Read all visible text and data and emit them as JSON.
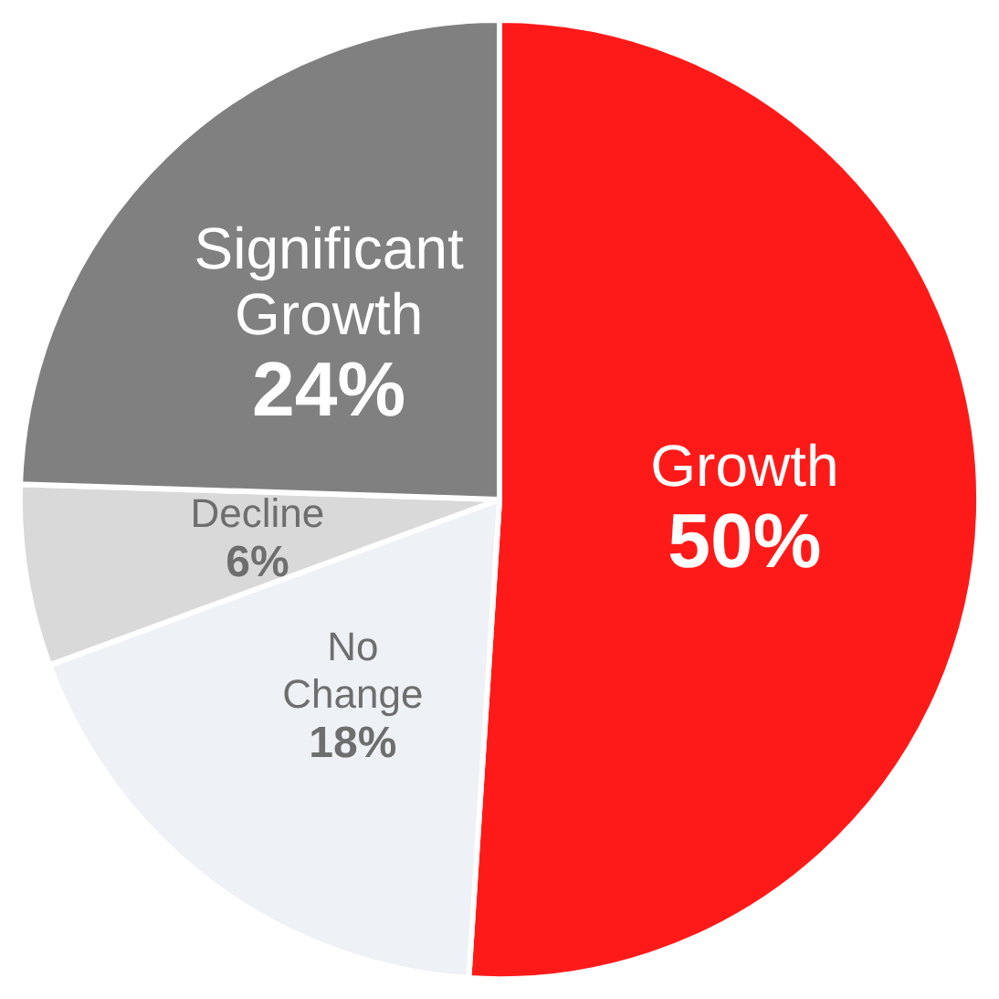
{
  "chart_data": {
    "type": "pie",
    "categories": [
      "Growth",
      "No Change",
      "Decline",
      "Significant Growth"
    ],
    "values": [
      50,
      18,
      6,
      24
    ],
    "value_labels": [
      "50%",
      "18%",
      "6%",
      "24%"
    ],
    "colors": [
      "#ff1a1a",
      "#eef1f5",
      "#d9d9d9",
      "#808080"
    ]
  }
}
